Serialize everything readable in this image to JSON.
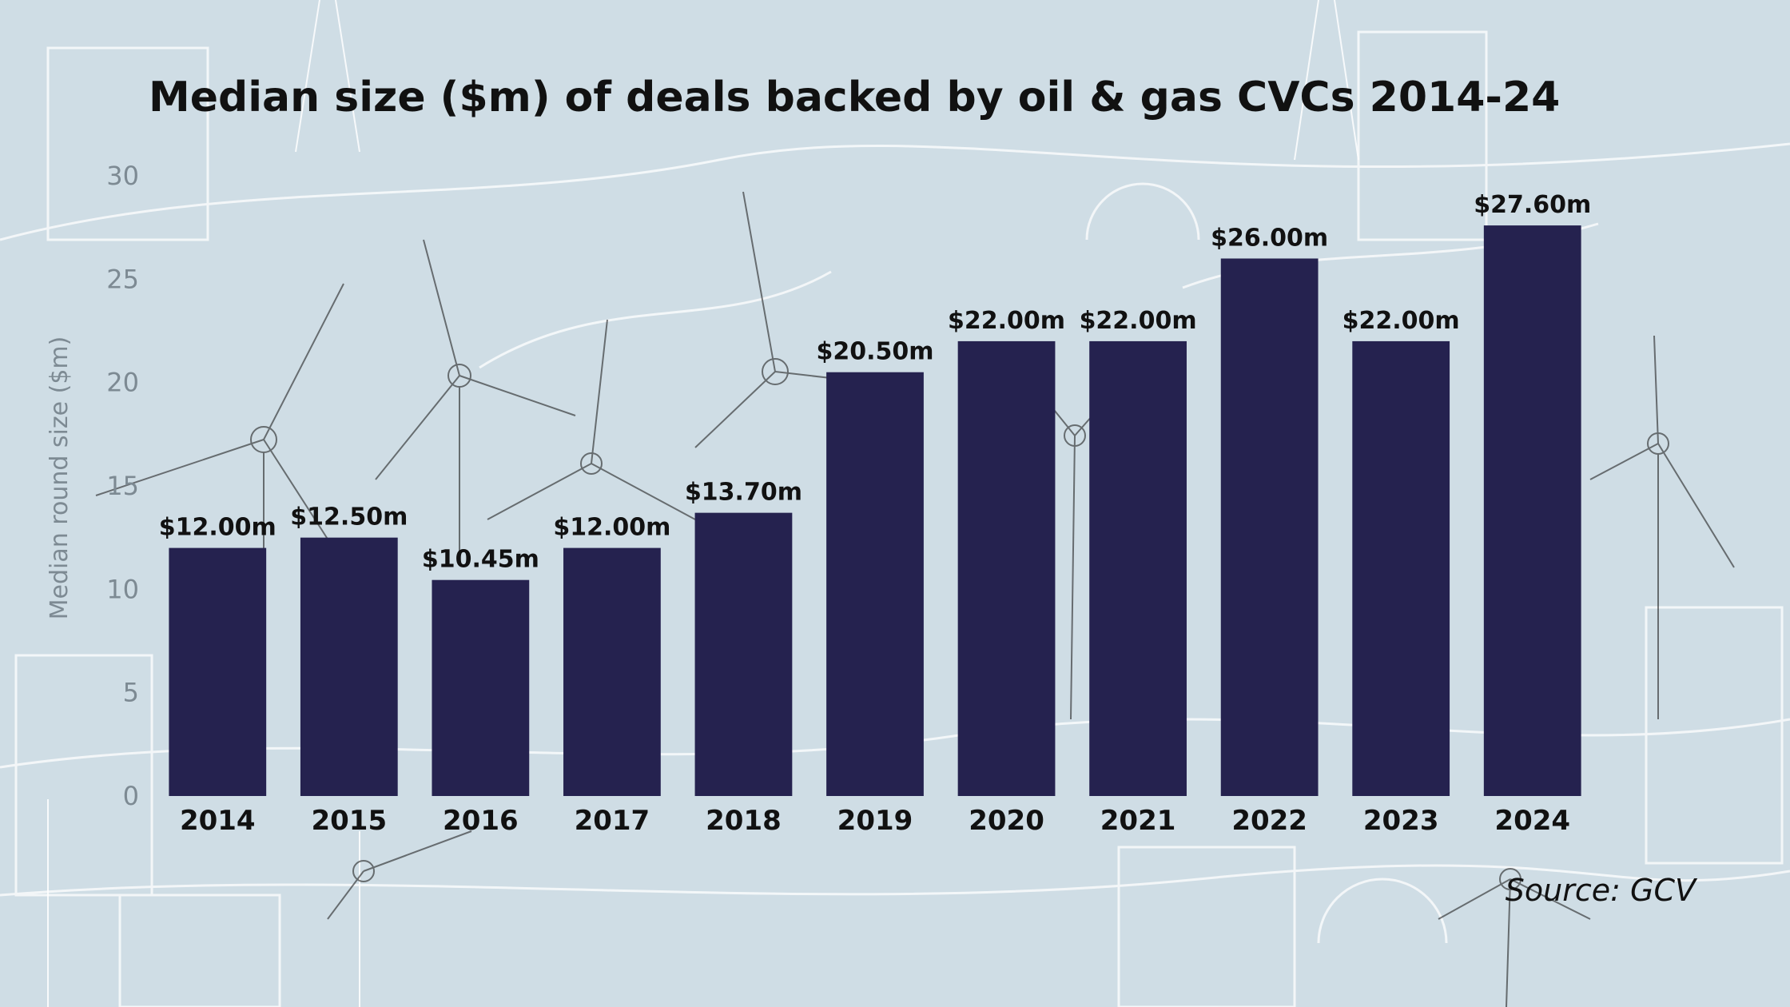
{
  "chart_data": {
    "type": "bar",
    "title": "Median size ($m) of deals backed by oil & gas CVCs 2014-24",
    "ylabel": "Median round size ($m)",
    "categories": [
      "2014",
      "2015",
      "2016",
      "2017",
      "2018",
      "2019",
      "2020",
      "2021",
      "2022",
      "2023",
      "2024"
    ],
    "values": [
      12.0,
      12.5,
      10.45,
      12.0,
      13.7,
      20.5,
      22.0,
      22.0,
      26.0,
      22.0,
      27.6
    ],
    "data_labels": [
      "$12.00m",
      "$12.50m",
      "$10.45m",
      "$12.00m",
      "$13.70m",
      "$20.50m",
      "$22.00m",
      "$22.00m",
      "$26.00m",
      "$22.00m",
      "$27.60m"
    ],
    "yticks": [
      0,
      5,
      10,
      15,
      20,
      25,
      30
    ],
    "ylim": [
      0,
      30
    ],
    "grid": false,
    "bar_color": "#25224f",
    "source": "Source: GCV"
  }
}
